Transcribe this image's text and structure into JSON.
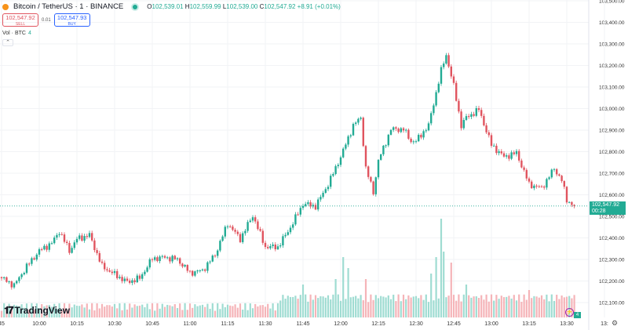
{
  "header": {
    "symbol": "Bitcoin / TetherUS · 1 · BINANCE",
    "o_label": "O",
    "o": "102,539.01",
    "h_label": "H",
    "h": "102,559.99",
    "l_label": "L",
    "l": "102,539.00",
    "c_label": "C",
    "c": "102,547.92",
    "change": "+8.91 (+0.01%)"
  },
  "trade": {
    "sell_price": "102,547.92",
    "sell_label": "SELL",
    "spread": "0.01",
    "buy_price": "102,547.93",
    "buy_label": "BUY"
  },
  "volume_indicator": {
    "label": "Vol · BTC",
    "value": "4"
  },
  "brand": "TradingView",
  "price_label": {
    "price": "102,547.92",
    "countdown": "00:28"
  },
  "volume_label": "4",
  "colors": {
    "up": "#22ab94",
    "down": "#e0545f",
    "vol_up": "#9fdcd2",
    "vol_down": "#f5b4b8",
    "grid": "#f2f3f6"
  },
  "chart_data": {
    "type": "candlestick",
    "symbol": "BTC/USDT",
    "interval": "1m",
    "price_ticks": [
      "103,500.00",
      "103,400.00",
      "103,300.00",
      "103,200.00",
      "103,100.00",
      "103,000.00",
      "102,900.00",
      "102,800.00",
      "102,700.00",
      "102,600.00",
      "102,500.00",
      "102,400.00",
      "102,300.00",
      "102,200.00",
      "102,100.00"
    ],
    "ylim": [
      102050,
      103500
    ],
    "time_ticks": [
      "45",
      "10:00",
      "10:15",
      "10:30",
      "10:45",
      "11:00",
      "11:15",
      "11:30",
      "11:45",
      "12:00",
      "12:15",
      "12:30",
      "12:45",
      "13:00",
      "13:15",
      "13:30",
      "13:"
    ],
    "last_price": 102547.92,
    "close_path": [
      [
        "09:45",
        102213
      ],
      [
        "09:50",
        102180
      ],
      [
        "09:55",
        102268
      ],
      [
        "10:00",
        102340
      ],
      [
        "10:05",
        102376
      ],
      [
        "10:08",
        102431
      ],
      [
        "10:12",
        102340
      ],
      [
        "10:15",
        102395
      ],
      [
        "10:20",
        102413
      ],
      [
        "10:25",
        102268
      ],
      [
        "10:30",
        102231
      ],
      [
        "10:35",
        102195
      ],
      [
        "10:40",
        102213
      ],
      [
        "10:45",
        102304
      ],
      [
        "10:50",
        102310
      ],
      [
        "10:55",
        102300
      ],
      [
        "11:00",
        102238
      ],
      [
        "11:05",
        102249
      ],
      [
        "11:10",
        102322
      ],
      [
        "11:15",
        102467
      ],
      [
        "11:20",
        102395
      ],
      [
        "11:25",
        102504
      ],
      [
        "11:30",
        102358
      ],
      [
        "11:35",
        102358
      ],
      [
        "11:40",
        102449
      ],
      [
        "11:45",
        102558
      ],
      [
        "11:50",
        102547
      ],
      [
        "11:55",
        102649
      ],
      [
        "12:00",
        102776
      ],
      [
        "12:05",
        102922
      ],
      [
        "12:08",
        102958
      ],
      [
        "12:10",
        102722
      ],
      [
        "12:13",
        102613
      ],
      [
        "12:15",
        102758
      ],
      [
        "12:20",
        102904
      ],
      [
        "12:25",
        102904
      ],
      [
        "12:28",
        102849
      ],
      [
        "12:30",
        102849
      ],
      [
        "12:35",
        102922
      ],
      [
        "12:40",
        103176
      ],
      [
        "12:42",
        103249
      ],
      [
        "12:45",
        103104
      ],
      [
        "12:48",
        102922
      ],
      [
        "12:50",
        102958
      ],
      [
        "12:55",
        102995
      ],
      [
        "13:00",
        102831
      ],
      [
        "13:05",
        102776
      ],
      [
        "13:10",
        102794
      ],
      [
        "13:15",
        102649
      ],
      [
        "13:20",
        102631
      ],
      [
        "13:25",
        102722
      ],
      [
        "13:28",
        102667
      ],
      [
        "13:30",
        102576
      ],
      [
        "13:33",
        102547.92
      ]
    ],
    "volume_spikes": [
      [
        "11:45",
        0.3
      ],
      [
        "11:58",
        0.35
      ],
      [
        "12:01",
        0.55
      ],
      [
        "12:03",
        0.45
      ],
      [
        "12:10",
        0.35
      ],
      [
        "12:36",
        0.4
      ],
      [
        "12:38",
        0.55
      ],
      [
        "12:40",
        0.9
      ],
      [
        "12:41",
        0.6
      ],
      [
        "12:44",
        0.5
      ],
      [
        "12:50",
        0.3
      ],
      [
        "13:15",
        0.25
      ]
    ]
  }
}
